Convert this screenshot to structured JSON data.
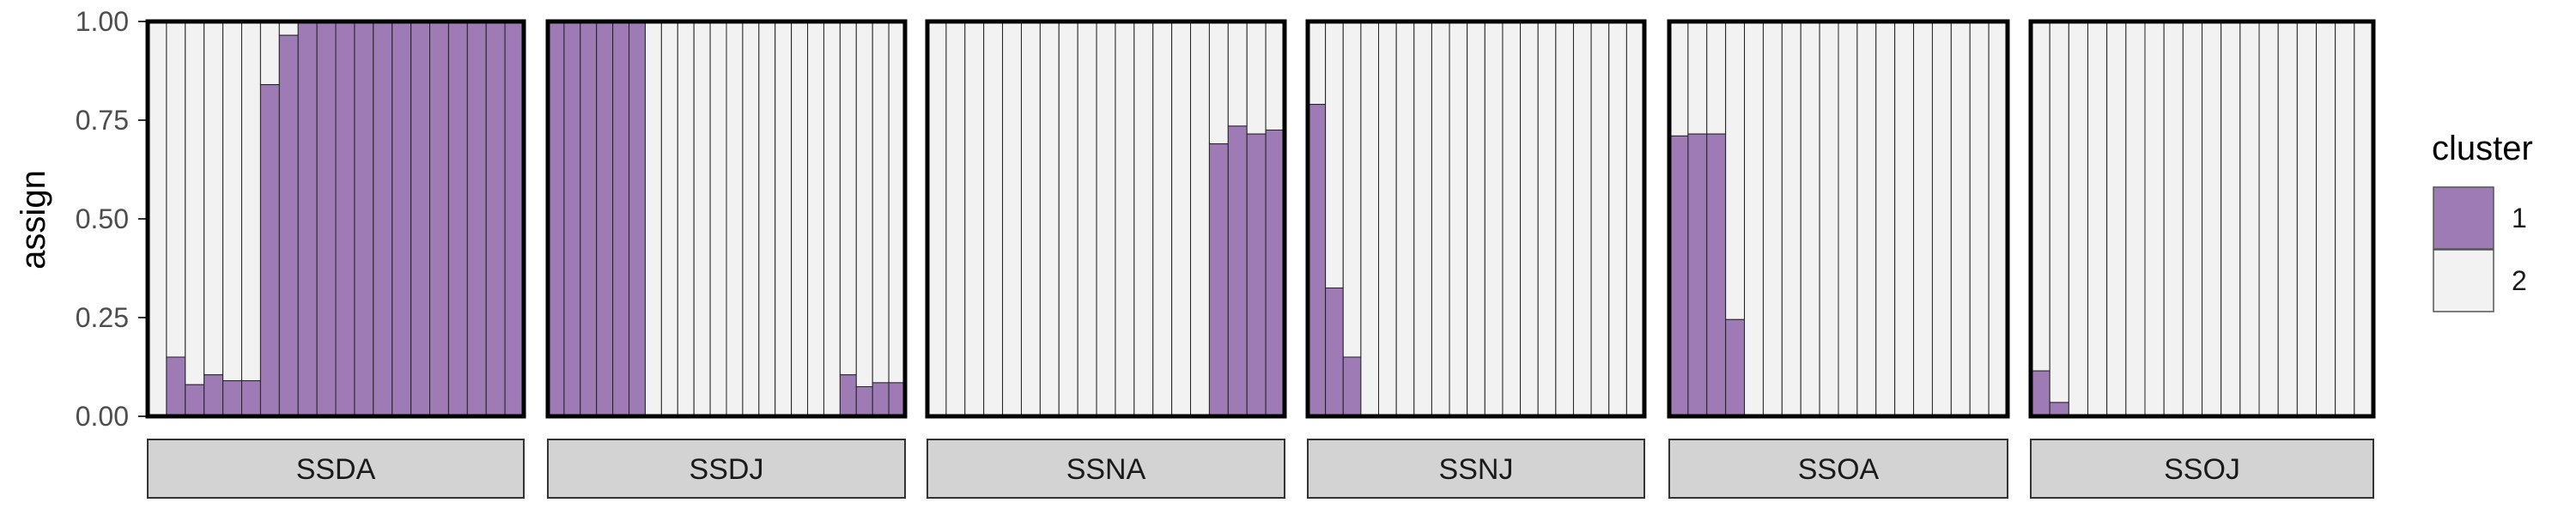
{
  "chart_data": {
    "type": "bar",
    "subtype": "stacked-faceted",
    "ylabel": "assign",
    "ylim": [
      0,
      1
    ],
    "yticks": [
      "0.00",
      "0.25",
      "0.50",
      "0.75",
      "1.00"
    ],
    "legend": {
      "title": "cluster",
      "placement": "right",
      "entries": [
        {
          "label": "1",
          "color": "#9e7bb5"
        },
        {
          "label": "2",
          "color": "#f2f2f2"
        }
      ]
    },
    "colors": {
      "cluster1": "#9e7bb5",
      "cluster2": "#f2f2f2",
      "strip": "#d3d3d3"
    },
    "facets": [
      {
        "name": "SSDA",
        "values": [
          0.0,
          0.15,
          0.08,
          0.105,
          0.09,
          0.09,
          0.84,
          0.965,
          1,
          1,
          1,
          1,
          1,
          1,
          1,
          1,
          1,
          1,
          1,
          1
        ]
      },
      {
        "name": "SSDJ",
        "values": [
          1,
          1,
          1,
          1,
          1,
          1,
          0,
          0,
          0,
          0,
          0,
          0,
          0,
          0,
          0,
          0,
          0,
          0,
          0.105,
          0.075,
          0.085,
          0.085
        ]
      },
      {
        "name": "SSNA",
        "values": [
          0,
          0,
          0,
          0,
          0,
          0,
          0,
          0,
          0,
          0,
          0,
          0,
          0,
          0,
          0,
          0.69,
          0.735,
          0.715,
          0.725
        ]
      },
      {
        "name": "SSNJ",
        "values": [
          0.79,
          0.325,
          0.15,
          0,
          0,
          0,
          0,
          0,
          0,
          0,
          0,
          0,
          0,
          0,
          0,
          0,
          0,
          0,
          0
        ]
      },
      {
        "name": "SSOA",
        "values": [
          0.71,
          0.715,
          0.715,
          0.245,
          0,
          0,
          0,
          0,
          0,
          0,
          0,
          0,
          0,
          0,
          0,
          0,
          0,
          0
        ]
      },
      {
        "name": "SSOJ",
        "values": [
          0.115,
          0.035,
          0,
          0,
          0,
          0,
          0,
          0,
          0,
          0,
          0,
          0,
          0,
          0,
          0,
          0,
          0,
          0
        ]
      }
    ]
  }
}
